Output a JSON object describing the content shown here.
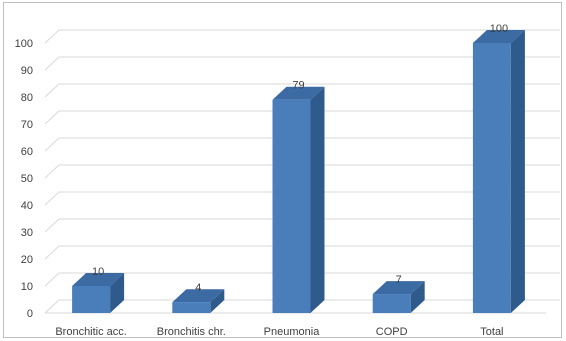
{
  "chart_data": {
    "type": "bar",
    "categories": [
      "Bronchitic acc.",
      "Bronchitis chr.",
      "Pneumonia",
      "COPD",
      "Total"
    ],
    "values": [
      10,
      4,
      79,
      7,
      100
    ],
    "data_labels": [
      "10",
      "4",
      "79",
      "7",
      "100"
    ],
    "ylim": [
      0,
      100
    ],
    "yticks": [
      0,
      10,
      20,
      30,
      40,
      50,
      60,
      70,
      80,
      90,
      100
    ],
    "grid": true,
    "colors": {
      "front": "#4a7ebb",
      "side": "#2f5a8c",
      "top": "#3c6aa3",
      "grid": "#d9d9d9"
    }
  }
}
